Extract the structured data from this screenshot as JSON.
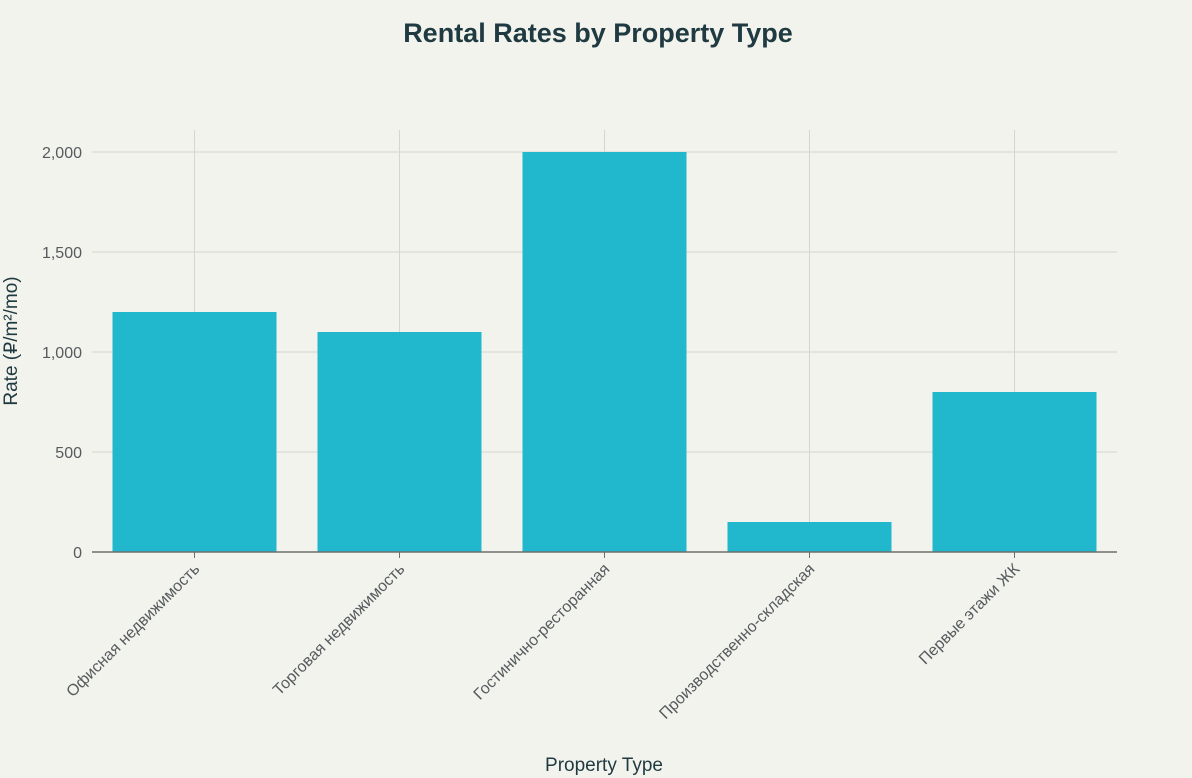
{
  "chart_data": {
    "type": "bar",
    "title": "Rental Rates by Property Type",
    "xlabel": "Property Type",
    "ylabel": "Rate (₽/m²/mo)",
    "categories": [
      "Офисная недвижимость",
      "Торговая недвижимость",
      "Гостинично-ресторанная",
      "Производственно-складская",
      "Первые этажи ЖК"
    ],
    "values": [
      1200,
      1100,
      2000,
      150,
      800
    ],
    "ylim": [
      0,
      2100
    ],
    "yticks": [
      0,
      500,
      1000,
      1500,
      2000
    ],
    "ytick_labels": [
      "0",
      "500",
      "1,000",
      "1,500",
      "2,000"
    ],
    "grid": true,
    "legend": "none",
    "colors": {
      "bar": "#21b7cc",
      "background": "#f3f3ee",
      "title": "#1f3a40"
    }
  }
}
